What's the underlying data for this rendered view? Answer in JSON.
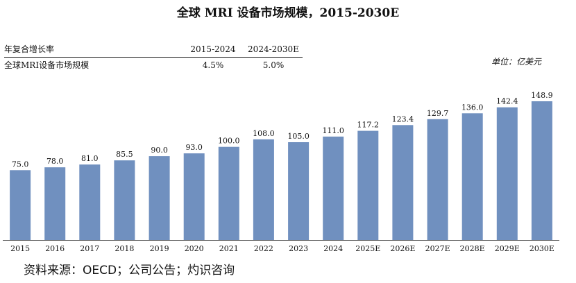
{
  "title": "全球 MRI 设备市场规模，2015-2030E",
  "cagr_table": {
    "header_label": "年复合增长率",
    "col1": "2015-2024",
    "col2": "2024-2030E",
    "row_label": "全球MRI设备市场规模",
    "row_val1": "4.5%",
    "row_val2": "5.0%"
  },
  "unit": "单位：亿美元",
  "source": "资料来源：OECD；公司公告；灼识咨询",
  "colors": {
    "bar": "#7090BF"
  },
  "chart_data": {
    "type": "bar",
    "categories": [
      "2015",
      "2016",
      "2017",
      "2018",
      "2019",
      "2020",
      "2021",
      "2022",
      "2023",
      "2024",
      "2025E",
      "2026E",
      "2027E",
      "2028E",
      "2029E",
      "2030E"
    ],
    "values": [
      75.0,
      78.0,
      81.0,
      85.5,
      90.0,
      93.0,
      100.0,
      108.0,
      105.0,
      111.0,
      117.2,
      123.4,
      129.7,
      136.0,
      142.4,
      148.9
    ],
    "labels": [
      "75.0",
      "78.0",
      "81.0",
      "85.5",
      "90.0",
      "93.0",
      "100.0",
      "108.0",
      "105.0",
      "111.0",
      "117.2",
      "123.4",
      "129.7",
      "136.0",
      "142.4",
      "148.9"
    ],
    "ylim": [
      0,
      148.9
    ],
    "grid": false,
    "legend": "none"
  }
}
